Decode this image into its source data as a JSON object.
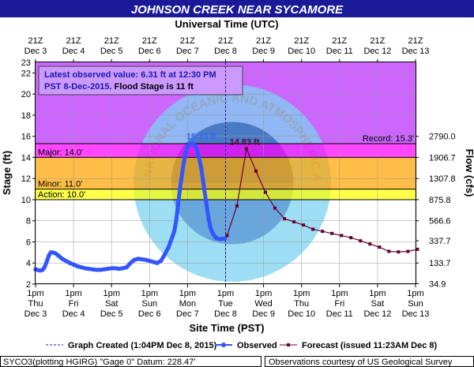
{
  "chart_data": {
    "type": "line",
    "title": "JOHNSON CREEK NEAR SYCAMORE",
    "top_axis_title": "Universal Time (UTC)",
    "top_ticks": [
      {
        "line1": "21Z",
        "line2": "Dec 3"
      },
      {
        "line1": "21Z",
        "line2": "Dec 4"
      },
      {
        "line1": "21Z",
        "line2": "Dec 5"
      },
      {
        "line1": "21Z",
        "line2": "Dec 6"
      },
      {
        "line1": "21Z",
        "line2": "Dec 7"
      },
      {
        "line1": "21Z",
        "line2": "Dec 8"
      },
      {
        "line1": "21Z",
        "line2": "Dec 9"
      },
      {
        "line1": "21Z",
        "line2": "Dec 10"
      },
      {
        "line1": "21Z",
        "line2": "Dec 11"
      },
      {
        "line1": "21Z",
        "line2": "Dec 12"
      },
      {
        "line1": "21Z",
        "line2": "Dec 13"
      }
    ],
    "xlabel": "Site Time (PST)",
    "bottom_ticks": [
      {
        "line1": "1pm",
        "line2": "Thu",
        "line3": "Dec 3"
      },
      {
        "line1": "1pm",
        "line2": "Fri",
        "line3": "Dec 4"
      },
      {
        "line1": "1pm",
        "line2": "Sat",
        "line3": "Dec 5"
      },
      {
        "line1": "1pm",
        "line2": "Sun",
        "line3": "Dec 6"
      },
      {
        "line1": "1pm",
        "line2": "Mon",
        "line3": "Dec 7"
      },
      {
        "line1": "1pm",
        "line2": "Tue",
        "line3": "Dec 8"
      },
      {
        "line1": "1pm",
        "line2": "Wed",
        "line3": "Dec 9"
      },
      {
        "line1": "1pm",
        "line2": "Thu",
        "line3": "Dec 10"
      },
      {
        "line1": "1pm",
        "line2": "Fri",
        "line3": "Dec 11"
      },
      {
        "line1": "1pm",
        "line2": "Sat",
        "line3": "Dec 12"
      },
      {
        "line1": "1pm",
        "line2": "Sun",
        "line3": "Dec 13"
      }
    ],
    "ylabel": "Stage (ft)",
    "ylim": [
      2,
      23
    ],
    "yticks": [
      2,
      4,
      6,
      8,
      10,
      12,
      14,
      16,
      18,
      20,
      22
    ],
    "y2label": "Flow (cfs)",
    "y2ticks": [
      {
        "stage": 2.05,
        "label": "34.9"
      },
      {
        "stage": 4.0,
        "label": "133.7"
      },
      {
        "stage": 6.1,
        "label": "337.7"
      },
      {
        "stage": 8.0,
        "label": "566.6"
      },
      {
        "stage": 10.0,
        "label": "875.8"
      },
      {
        "stage": 12.0,
        "label": "1307.8"
      },
      {
        "stage": 14.0,
        "label": "1906.7"
      },
      {
        "stage": 16.0,
        "label": "2790.0"
      }
    ],
    "flood_categories": [
      {
        "label": "Action: 10.0'",
        "from": 10,
        "to": 11,
        "color": "#ffff00"
      },
      {
        "label": "Minor: 11.0'",
        "from": 11,
        "to": 14,
        "color": "#ffa500"
      },
      {
        "label": "Major: 14.0'",
        "from": 14,
        "to": 15.3,
        "color": "#ff00ff"
      }
    ],
    "record": {
      "label": "Record: 15.3'",
      "value": 15.3
    },
    "info_box": {
      "line1": "Latest observed value: 6.31 ft at 12:30 PM",
      "line2a": "PST 8-Dec-2015.",
      "line2b": " Flood Stage is 11 ft"
    },
    "peaks": [
      {
        "label": "15.33 ft",
        "x": 4.36,
        "y": 15.33,
        "color": "#3366ff"
      },
      {
        "label": "14.83 ft",
        "x": 5.5,
        "y": 14.83,
        "color": "#660033"
      }
    ],
    "graph_created_x": 5.0,
    "series": [
      {
        "name": "Observed",
        "color": "#3355ff",
        "x": [
          0,
          0.05,
          0.1,
          0.15,
          0.2,
          0.25,
          0.3,
          0.35,
          0.4,
          0.45,
          0.5,
          0.55,
          0.6,
          0.65,
          0.7,
          0.8,
          0.9,
          1.0,
          1.1,
          1.2,
          1.3,
          1.4,
          1.5,
          1.6,
          1.7,
          1.8,
          1.9,
          2.0,
          2.1,
          2.2,
          2.3,
          2.4,
          2.5,
          2.6,
          2.7,
          2.8,
          2.9,
          3.0,
          3.1,
          3.2,
          3.3,
          3.4,
          3.5,
          3.55,
          3.6,
          3.65,
          3.7,
          3.75,
          3.8,
          3.85,
          3.9,
          3.95,
          4.0,
          4.05,
          4.1,
          4.15,
          4.2,
          4.25,
          4.3,
          4.36,
          4.42,
          4.48,
          4.52,
          4.56,
          4.6,
          4.64,
          4.68,
          4.72,
          4.76,
          4.8,
          4.85,
          4.9,
          4.95,
          4.98
        ],
        "values": [
          3.4,
          3.35,
          3.3,
          3.3,
          3.4,
          3.7,
          4.2,
          4.7,
          5.0,
          5.0,
          4.95,
          4.85,
          4.7,
          4.55,
          4.4,
          4.2,
          4.0,
          3.85,
          3.7,
          3.6,
          3.5,
          3.45,
          3.4,
          3.35,
          3.35,
          3.4,
          3.45,
          3.5,
          3.5,
          3.45,
          3.5,
          3.6,
          4.0,
          4.3,
          4.4,
          4.35,
          4.3,
          4.2,
          4.1,
          4.0,
          4.2,
          4.8,
          5.5,
          6.0,
          6.5,
          7.0,
          8.0,
          9.5,
          11.0,
          12.3,
          13.5,
          14.4,
          15.0,
          15.25,
          15.33,
          15.3,
          15.1,
          14.7,
          14.0,
          13.0,
          11.5,
          10.0,
          9.0,
          8.1,
          7.4,
          7.0,
          6.7,
          6.5,
          6.35,
          6.3,
          6.25,
          6.28,
          6.3,
          6.31
        ]
      },
      {
        "name": "Forecast (issued 11:23AM Dec 8)",
        "color": "#660033",
        "x": [
          5.04,
          5.3,
          5.55,
          5.8,
          6.05,
          6.3,
          6.55,
          6.8,
          7.05,
          7.3,
          7.55,
          7.8,
          8.05,
          8.3,
          8.55,
          8.8,
          9.05,
          9.3,
          9.55,
          9.8,
          10.05
        ],
        "values": [
          6.6,
          9.4,
          14.83,
          12.7,
          10.7,
          9.2,
          8.2,
          7.9,
          7.6,
          7.2,
          7.0,
          6.8,
          6.6,
          6.4,
          6.1,
          5.8,
          5.5,
          5.1,
          5.05,
          5.1,
          5.3
        ]
      }
    ],
    "legend": {
      "graph_created": "Graph Created (1:04PM Dec 8, 2015)",
      "observed": "Observed",
      "forecast": "Forecast (issued 11:23AM Dec 8)"
    },
    "footer_left": "SYCO3(plotting HGIRG) \"Gage 0\" Datum: 228.47'",
    "footer_right": "Observations courtesy of US Geological Survey",
    "watermark_text": "NATIONAL OCEANIC AND ATMOSPHERIC ADMINISTRATION · U.S. DEPARTMENT OF COMMERCE · NOAA"
  }
}
